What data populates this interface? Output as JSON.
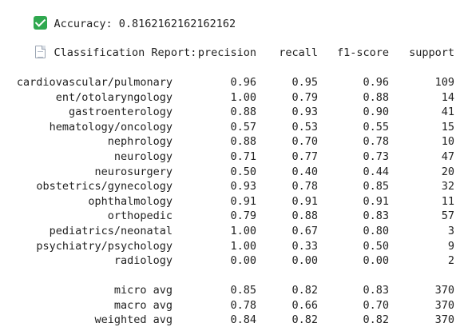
{
  "accuracy_line": {
    "icon": "check-mark-icon",
    "text": "Accuracy: 0.8162162162162162"
  },
  "report_title": {
    "icon": "page-icon",
    "text": "Classification Report:"
  },
  "headers": {
    "precision": "precision",
    "recall": "recall",
    "f1": "f1-score",
    "support": "support"
  },
  "rows": [
    {
      "label": "cardiovascular/pulmonary",
      "precision": "0.96",
      "recall": "0.95",
      "f1": "0.96",
      "support": "109"
    },
    {
      "label": "ent/otolaryngology",
      "precision": "1.00",
      "recall": "0.79",
      "f1": "0.88",
      "support": "14"
    },
    {
      "label": "gastroenterology",
      "precision": "0.88",
      "recall": "0.93",
      "f1": "0.90",
      "support": "41"
    },
    {
      "label": "hematology/oncology",
      "precision": "0.57",
      "recall": "0.53",
      "f1": "0.55",
      "support": "15"
    },
    {
      "label": "nephrology",
      "precision": "0.88",
      "recall": "0.70",
      "f1": "0.78",
      "support": "10"
    },
    {
      "label": "neurology",
      "precision": "0.71",
      "recall": "0.77",
      "f1": "0.73",
      "support": "47"
    },
    {
      "label": "neurosurgery",
      "precision": "0.50",
      "recall": "0.40",
      "f1": "0.44",
      "support": "20"
    },
    {
      "label": "obstetrics/gynecology",
      "precision": "0.93",
      "recall": "0.78",
      "f1": "0.85",
      "support": "32"
    },
    {
      "label": "ophthalmology",
      "precision": "0.91",
      "recall": "0.91",
      "f1": "0.91",
      "support": "11"
    },
    {
      "label": "orthopedic",
      "precision": "0.79",
      "recall": "0.88",
      "f1": "0.83",
      "support": "57"
    },
    {
      "label": "pediatrics/neonatal",
      "precision": "1.00",
      "recall": "0.67",
      "f1": "0.80",
      "support": "3"
    },
    {
      "label": "psychiatry/psychology",
      "precision": "1.00",
      "recall": "0.33",
      "f1": "0.50",
      "support": "9"
    },
    {
      "label": "radiology",
      "precision": "0.00",
      "recall": "0.00",
      "f1": "0.00",
      "support": "2"
    }
  ],
  "averages": [
    {
      "label": "micro avg",
      "precision": "0.85",
      "recall": "0.82",
      "f1": "0.83",
      "support": "370"
    },
    {
      "label": "macro avg",
      "precision": "0.78",
      "recall": "0.66",
      "f1": "0.70",
      "support": "370"
    },
    {
      "label": "weighted avg",
      "precision": "0.84",
      "recall": "0.82",
      "f1": "0.82",
      "support": "370"
    }
  ]
}
